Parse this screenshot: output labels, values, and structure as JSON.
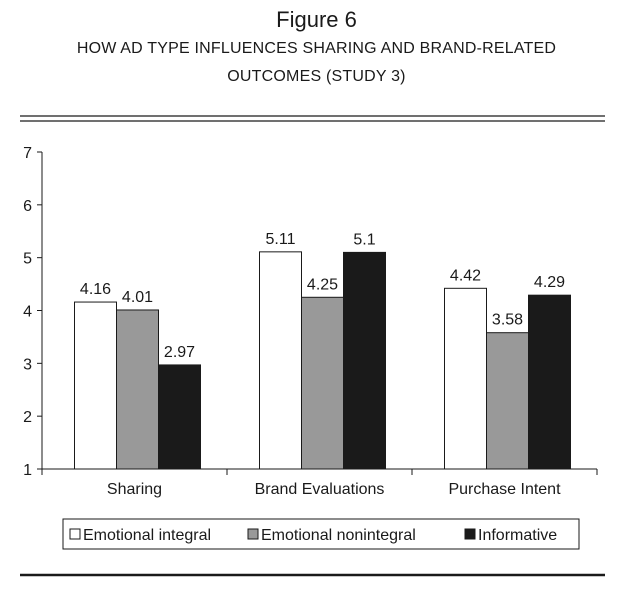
{
  "figure": {
    "number": "Figure 6",
    "title_line1": "HOW AD TYPE INFLUENCES SHARING AND BRAND-RELATED",
    "title_line2": "OUTCOMES (STUDY 3)"
  },
  "chart_data": {
    "type": "bar",
    "categories": [
      "Sharing",
      "Brand Evaluations",
      "Purchase Intent"
    ],
    "series": [
      {
        "name": "Emotional integral",
        "color": "#ffffff",
        "values": [
          4.16,
          5.11,
          4.42
        ],
        "labels": [
          "4.16",
          "5.11",
          "4.42"
        ]
      },
      {
        "name": "Emotional nonintegral",
        "color": "#999999",
        "values": [
          4.01,
          4.25,
          3.58
        ],
        "labels": [
          "4.01",
          "4.25",
          "3.58"
        ]
      },
      {
        "name": "Informative",
        "color": "#1a1a1a",
        "values": [
          2.97,
          5.1,
          4.29
        ],
        "labels": [
          "2.97",
          "5.1",
          "4.29"
        ]
      }
    ],
    "ylim": [
      1,
      7
    ],
    "yticks": [
      "1",
      "2",
      "3",
      "4",
      "5",
      "6",
      "7"
    ],
    "grid": false,
    "legend": "bottom",
    "xlabel": "",
    "ylabel": ""
  }
}
